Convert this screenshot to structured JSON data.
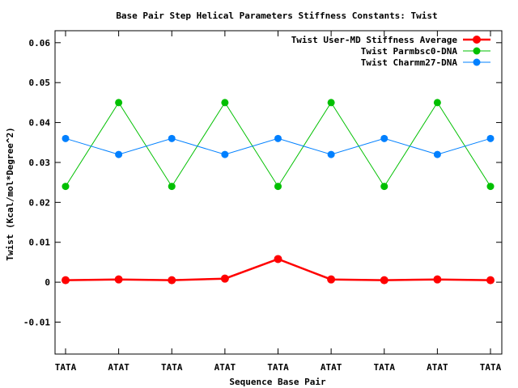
{
  "chart_data": {
    "type": "line",
    "title": "Base Pair Step Helical Parameters Stiffness Constants: Twist",
    "xlabel": "Sequence Base Pair",
    "ylabel": "Twist (Kcal/mol*Degree^2)",
    "categories": [
      "TATA",
      "ATAT",
      "TATA",
      "ATAT",
      "TATA",
      "ATAT",
      "TATA",
      "ATAT",
      "TATA"
    ],
    "ylim": [
      -0.018,
      0.063
    ],
    "yticks": [
      -0.01,
      0,
      0.01,
      0.02,
      0.03,
      0.04,
      0.05,
      0.06
    ],
    "ytick_labels": [
      "-0.01",
      "0",
      "0.01",
      "0.02",
      "0.03",
      "0.04",
      "0.05",
      "0.06"
    ],
    "grid": false,
    "legend_position": "top-right",
    "series": [
      {
        "name": "Twist User-MD Stiffness Average",
        "color": "#ff0000",
        "values": [
          0.0005,
          0.0007,
          0.0005,
          0.0009,
          0.0058,
          0.0007,
          0.0005,
          0.0007,
          0.0005
        ]
      },
      {
        "name": "Twist Parmbsc0-DNA",
        "color": "#00c000",
        "values": [
          0.024,
          0.045,
          0.024,
          0.045,
          0.024,
          0.045,
          0.024,
          0.045,
          0.024
        ]
      },
      {
        "name": "Twist Charmm27-DNA",
        "color": "#0080ff",
        "values": [
          0.036,
          0.032,
          0.036,
          0.032,
          0.036,
          0.032,
          0.036,
          0.032,
          0.036
        ]
      }
    ]
  }
}
